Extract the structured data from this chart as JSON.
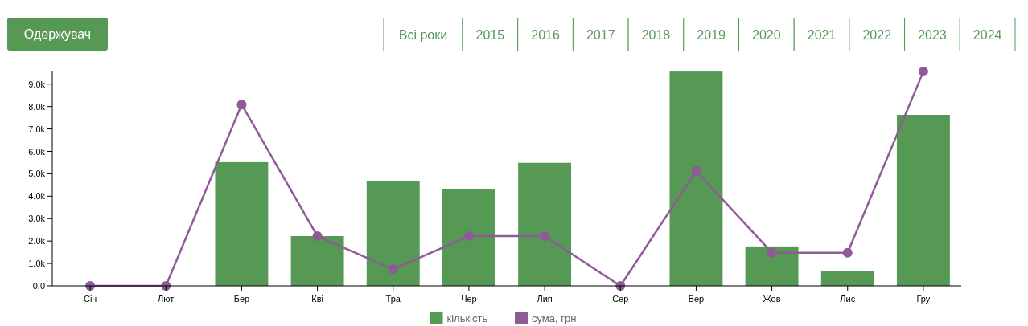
{
  "chart_data": {
    "type": "bar",
    "categories": [
      "Січ",
      "Лют",
      "Бер",
      "Кві",
      "Тра",
      "Чер",
      "Лип",
      "Сер",
      "Вер",
      "Жов",
      "Лис",
      "Гру"
    ],
    "series": [
      {
        "name": "кількість",
        "color": "#559955",
        "values": [
          0,
          0,
          5520,
          2220,
          4680,
          4320,
          5490,
          0,
          9560,
          1760,
          670,
          7630
        ]
      },
      {
        "name": "сума, грн",
        "type": "line",
        "color": "#8e5b97",
        "values": [
          0,
          0,
          8090,
          2220,
          740,
          2220,
          2220,
          0,
          5130,
          1480,
          1480,
          9560
        ]
      }
    ],
    "ylim": [
      0,
      9600
    ],
    "yticks": [
      {
        "value": 0,
        "label": "0.0"
      },
      {
        "value": 1000,
        "label": "1.0k"
      },
      {
        "value": 2000,
        "label": "2.0k"
      },
      {
        "value": 3000,
        "label": "3.0k"
      },
      {
        "value": 4000,
        "label": "4.0k"
      },
      {
        "value": 5000,
        "label": "5.0k"
      },
      {
        "value": 6000,
        "label": "6.0k"
      },
      {
        "value": 7000,
        "label": "7.0k"
      },
      {
        "value": 8000,
        "label": "8.0k"
      },
      {
        "value": 9000,
        "label": "9.0k"
      }
    ],
    "marker": "circle",
    "legend": "bottom",
    "annotations": [
      "Одержувач",
      "Всі роки",
      "2015",
      "2016",
      "2017",
      "2018",
      "2019",
      "2020",
      "2021",
      "2022",
      "2023",
      "2024"
    ]
  }
}
